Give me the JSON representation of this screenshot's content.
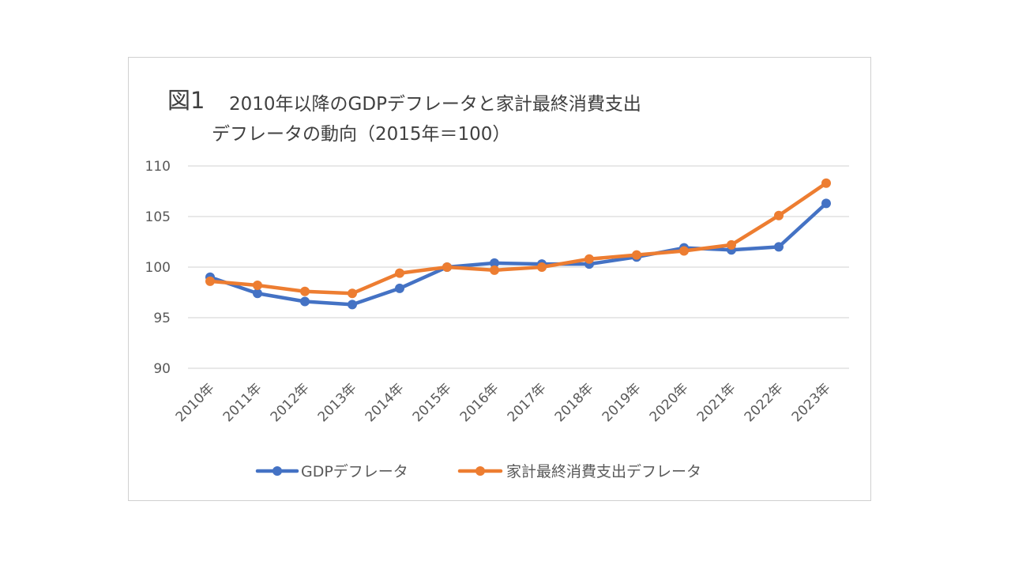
{
  "chart_data": {
    "type": "line",
    "title_fig": "図1",
    "title_line1": "2010年以降のGDPデフレータと家計最終消費支出",
    "title_line2": "デフレータの動向（2015年＝100）",
    "categories": [
      "2010年",
      "2011年",
      "2012年",
      "2013年",
      "2014年",
      "2015年",
      "2016年",
      "2017年",
      "2018年",
      "2019年",
      "2020年",
      "2021年",
      "2022年",
      "2023年"
    ],
    "series": [
      {
        "name": "GDPデフレータ",
        "color": "#4472c4",
        "values": [
          99.0,
          97.4,
          96.6,
          96.3,
          97.9,
          100.0,
          100.4,
          100.3,
          100.3,
          101.0,
          101.9,
          101.7,
          102.0,
          106.3
        ]
      },
      {
        "name": "家計最終消費支出デフレータ",
        "color": "#ed7d31",
        "values": [
          98.6,
          98.2,
          97.6,
          97.4,
          99.4,
          100.0,
          99.7,
          100.0,
          100.8,
          101.2,
          101.6,
          102.2,
          105.1,
          108.3
        ]
      }
    ],
    "yticks": [
      90,
      95,
      100,
      105,
      110
    ],
    "ylim": [
      90,
      110
    ],
    "grid": true,
    "legend_position": "bottom"
  }
}
